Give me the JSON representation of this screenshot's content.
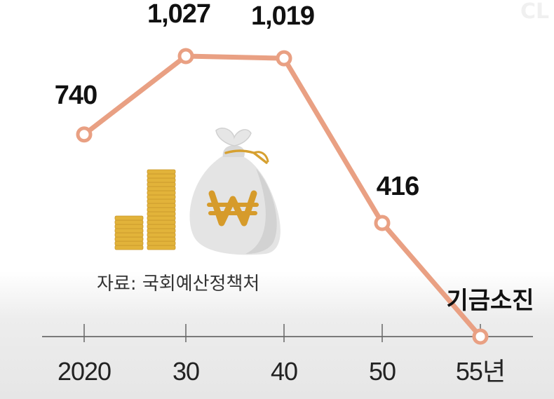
{
  "watermark": "CL",
  "source_note": "자료: 국회예산정책처",
  "chart_data": {
    "type": "line",
    "x": [
      "2020",
      "30",
      "40",
      "50",
      "55년"
    ],
    "values": [
      740,
      1027,
      1019,
      416,
      0
    ],
    "point_labels": [
      "740",
      "1,027",
      "1,019",
      "416",
      "기금소진"
    ],
    "ylim": [
      0,
      1100
    ],
    "grid": false,
    "line_color": "#e9a083",
    "marker_fill": "#ffffff",
    "coin_color": "#e2b33a",
    "bag_color": "#e4e4e4",
    "won_color": "#d69b2b"
  }
}
